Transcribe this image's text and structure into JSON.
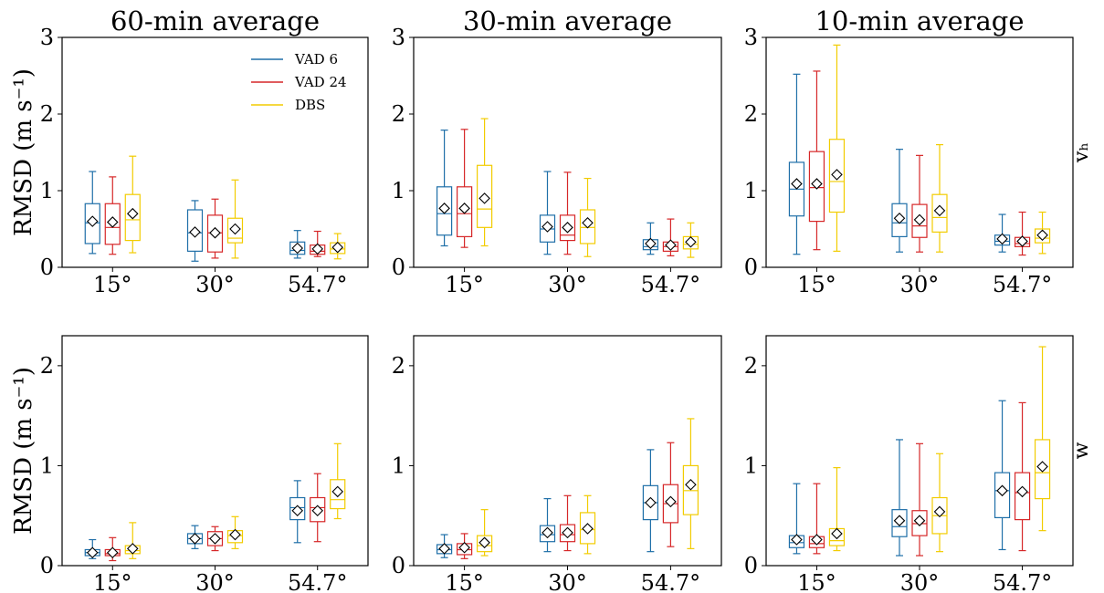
{
  "colors": {
    "VAD 6": "#1f6fa8",
    "VAD 24": "#d62728",
    "DBS": "#f2cc00"
  },
  "legend": [
    "VAD 6",
    "VAD 24",
    "DBS"
  ],
  "row_labels": [
    "vₕ",
    "w"
  ],
  "ylabel": "RMSD (m s⁻¹)",
  "chart_data": [
    {
      "type": "box",
      "title": "60-min average",
      "row": "vₕ",
      "col": "60-min average",
      "ylim": [
        0,
        3
      ],
      "yticks": [
        "0",
        "1",
        "2",
        "3"
      ],
      "categories": [
        "15°",
        "30°",
        "54.7°"
      ],
      "series": [
        {
          "name": "VAD 6",
          "boxes": [
            {
              "whislo": 0.18,
              "q1": 0.31,
              "med": 0.58,
              "q3": 0.83,
              "whishi": 1.25,
              "mean": 0.6
            },
            {
              "whislo": 0.08,
              "q1": 0.21,
              "med": 0.45,
              "q3": 0.75,
              "whishi": 0.87,
              "mean": 0.46
            },
            {
              "whislo": 0.12,
              "q1": 0.17,
              "med": 0.22,
              "q3": 0.33,
              "whishi": 0.48,
              "mean": 0.25
            }
          ]
        },
        {
          "name": "VAD 24",
          "boxes": [
            {
              "whislo": 0.17,
              "q1": 0.3,
              "med": 0.52,
              "q3": 0.83,
              "whishi": 1.18,
              "mean": 0.59
            },
            {
              "whislo": 0.12,
              "q1": 0.2,
              "med": 0.45,
              "q3": 0.68,
              "whishi": 0.89,
              "mean": 0.45
            },
            {
              "whislo": 0.14,
              "q1": 0.17,
              "med": 0.21,
              "q3": 0.29,
              "whishi": 0.47,
              "mean": 0.24
            }
          ]
        },
        {
          "name": "DBS",
          "boxes": [
            {
              "whislo": 0.19,
              "q1": 0.35,
              "med": 0.62,
              "q3": 0.95,
              "whishi": 1.45,
              "mean": 0.7
            },
            {
              "whislo": 0.12,
              "q1": 0.32,
              "med": 0.38,
              "q3": 0.64,
              "whishi": 1.14,
              "mean": 0.5
            },
            {
              "whislo": 0.11,
              "q1": 0.18,
              "med": 0.24,
              "q3": 0.32,
              "whishi": 0.44,
              "mean": 0.26
            }
          ]
        }
      ]
    },
    {
      "type": "box",
      "title": "30-min average",
      "row": "vₕ",
      "col": "30-min average",
      "ylim": [
        0,
        3
      ],
      "yticks": [
        "0",
        "1",
        "2",
        "3"
      ],
      "categories": [
        "15°",
        "30°",
        "54.7°"
      ],
      "series": [
        {
          "name": "VAD 6",
          "boxes": [
            {
              "whislo": 0.28,
              "q1": 0.42,
              "med": 0.7,
              "q3": 1.05,
              "whishi": 1.79,
              "mean": 0.77
            },
            {
              "whislo": 0.17,
              "q1": 0.33,
              "med": 0.5,
              "q3": 0.68,
              "whishi": 1.25,
              "mean": 0.53
            },
            {
              "whislo": 0.17,
              "q1": 0.23,
              "med": 0.27,
              "q3": 0.36,
              "whishi": 0.58,
              "mean": 0.31
            }
          ]
        },
        {
          "name": "VAD 24",
          "boxes": [
            {
              "whislo": 0.26,
              "q1": 0.4,
              "med": 0.7,
              "q3": 1.05,
              "whishi": 1.8,
              "mean": 0.77
            },
            {
              "whislo": 0.17,
              "q1": 0.35,
              "med": 0.42,
              "q3": 0.68,
              "whishi": 1.24,
              "mean": 0.52
            },
            {
              "whislo": 0.15,
              "q1": 0.21,
              "med": 0.27,
              "q3": 0.33,
              "whishi": 0.63,
              "mean": 0.29
            }
          ]
        },
        {
          "name": "DBS",
          "boxes": [
            {
              "whislo": 0.28,
              "q1": 0.52,
              "med": 0.76,
              "q3": 1.33,
              "whishi": 1.94,
              "mean": 0.9
            },
            {
              "whislo": 0.14,
              "q1": 0.31,
              "med": 0.52,
              "q3": 0.75,
              "whishi": 1.16,
              "mean": 0.58
            },
            {
              "whislo": 0.13,
              "q1": 0.24,
              "med": 0.3,
              "q3": 0.4,
              "whishi": 0.58,
              "mean": 0.33
            }
          ]
        }
      ]
    },
    {
      "type": "box",
      "title": "10-min average",
      "row": "vₕ",
      "col": "10-min average",
      "ylim": [
        0,
        3
      ],
      "yticks": [
        "0",
        "1",
        "2",
        "3"
      ],
      "categories": [
        "15°",
        "30°",
        "54.7°"
      ],
      "series": [
        {
          "name": "VAD 6",
          "boxes": [
            {
              "whislo": 0.17,
              "q1": 0.67,
              "med": 1.02,
              "q3": 1.37,
              "whishi": 2.52,
              "mean": 1.09
            },
            {
              "whislo": 0.2,
              "q1": 0.4,
              "med": 0.58,
              "q3": 0.83,
              "whishi": 1.54,
              "mean": 0.64
            },
            {
              "whislo": 0.2,
              "q1": 0.29,
              "med": 0.34,
              "q3": 0.42,
              "whishi": 0.69,
              "mean": 0.37
            }
          ]
        },
        {
          "name": "VAD 24",
          "boxes": [
            {
              "whislo": 0.23,
              "q1": 0.6,
              "med": 1.04,
              "q3": 1.51,
              "whishi": 2.56,
              "mean": 1.09
            },
            {
              "whislo": 0.2,
              "q1": 0.39,
              "med": 0.54,
              "q3": 0.82,
              "whishi": 1.46,
              "mean": 0.62
            },
            {
              "whislo": 0.16,
              "q1": 0.27,
              "med": 0.31,
              "q3": 0.39,
              "whishi": 0.72,
              "mean": 0.34
            }
          ]
        },
        {
          "name": "DBS",
          "boxes": [
            {
              "whislo": 0.21,
              "q1": 0.72,
              "med": 1.12,
              "q3": 1.67,
              "whishi": 2.9,
              "mean": 1.21
            },
            {
              "whislo": 0.2,
              "q1": 0.46,
              "med": 0.65,
              "q3": 0.95,
              "whishi": 1.6,
              "mean": 0.74
            },
            {
              "whislo": 0.18,
              "q1": 0.32,
              "med": 0.38,
              "q3": 0.5,
              "whishi": 0.72,
              "mean": 0.42
            }
          ]
        }
      ]
    },
    {
      "type": "box",
      "title": "",
      "row": "w",
      "col": "60-min average",
      "ylim": [
        0,
        2.3
      ],
      "yticks": [
        "0",
        "1",
        "2"
      ],
      "categories": [
        "15°",
        "30°",
        "54.7°"
      ],
      "series": [
        {
          "name": "VAD 6",
          "boxes": [
            {
              "whislo": 0.07,
              "q1": 0.1,
              "med": 0.13,
              "q3": 0.16,
              "whishi": 0.26,
              "mean": 0.13
            },
            {
              "whislo": 0.17,
              "q1": 0.22,
              "med": 0.27,
              "q3": 0.32,
              "whishi": 0.4,
              "mean": 0.27
            },
            {
              "whislo": 0.23,
              "q1": 0.46,
              "med": 0.58,
              "q3": 0.68,
              "whishi": 0.85,
              "mean": 0.55
            }
          ]
        },
        {
          "name": "VAD 24",
          "boxes": [
            {
              "whislo": 0.05,
              "q1": 0.1,
              "med": 0.12,
              "q3": 0.16,
              "whishi": 0.28,
              "mean": 0.13
            },
            {
              "whislo": 0.15,
              "q1": 0.2,
              "med": 0.27,
              "q3": 0.34,
              "whishi": 0.39,
              "mean": 0.27
            },
            {
              "whislo": 0.24,
              "q1": 0.44,
              "med": 0.58,
              "q3": 0.68,
              "whishi": 0.92,
              "mean": 0.55
            }
          ]
        },
        {
          "name": "DBS",
          "boxes": [
            {
              "whislo": 0.07,
              "q1": 0.12,
              "med": 0.15,
              "q3": 0.2,
              "whishi": 0.43,
              "mean": 0.17
            },
            {
              "whislo": 0.17,
              "q1": 0.23,
              "med": 0.3,
              "q3": 0.35,
              "whishi": 0.49,
              "mean": 0.31
            },
            {
              "whislo": 0.47,
              "q1": 0.57,
              "med": 0.66,
              "q3": 0.86,
              "whishi": 1.22,
              "mean": 0.74
            }
          ]
        }
      ]
    },
    {
      "type": "box",
      "title": "",
      "row": "w",
      "col": "30-min average",
      "ylim": [
        0,
        2.3
      ],
      "yticks": [
        "0",
        "1",
        "2"
      ],
      "categories": [
        "15°",
        "30°",
        "54.7°"
      ],
      "series": [
        {
          "name": "VAD 6",
          "boxes": [
            {
              "whislo": 0.08,
              "q1": 0.12,
              "med": 0.16,
              "q3": 0.21,
              "whishi": 0.31,
              "mean": 0.17
            },
            {
              "whislo": 0.14,
              "q1": 0.24,
              "med": 0.31,
              "q3": 0.4,
              "whishi": 0.67,
              "mean": 0.33
            },
            {
              "whislo": 0.14,
              "q1": 0.46,
              "med": 0.63,
              "q3": 0.8,
              "whishi": 1.16,
              "mean": 0.63
            }
          ]
        },
        {
          "name": "VAD 24",
          "boxes": [
            {
              "whislo": 0.07,
              "q1": 0.11,
              "med": 0.16,
              "q3": 0.22,
              "whishi": 0.32,
              "mean": 0.18
            },
            {
              "whislo": 0.15,
              "q1": 0.24,
              "med": 0.31,
              "q3": 0.41,
              "whishi": 0.7,
              "mean": 0.33
            },
            {
              "whislo": 0.19,
              "q1": 0.43,
              "med": 0.62,
              "q3": 0.81,
              "whishi": 1.23,
              "mean": 0.64
            }
          ]
        },
        {
          "name": "DBS",
          "boxes": [
            {
              "whislo": 0.1,
              "q1": 0.14,
              "med": 0.2,
              "q3": 0.3,
              "whishi": 0.56,
              "mean": 0.23
            },
            {
              "whislo": 0.12,
              "q1": 0.22,
              "med": 0.36,
              "q3": 0.53,
              "whishi": 0.7,
              "mean": 0.37
            },
            {
              "whislo": 0.17,
              "q1": 0.51,
              "med": 0.75,
              "q3": 1.0,
              "whishi": 1.47,
              "mean": 0.81
            }
          ]
        }
      ]
    },
    {
      "type": "box",
      "title": "",
      "row": "w",
      "col": "10-min average",
      "ylim": [
        0,
        2.3
      ],
      "yticks": [
        "0",
        "1",
        "2"
      ],
      "categories": [
        "15°",
        "30°",
        "54.7°"
      ],
      "series": [
        {
          "name": "VAD 6",
          "boxes": [
            {
              "whislo": 0.12,
              "q1": 0.18,
              "med": 0.23,
              "q3": 0.3,
              "whishi": 0.82,
              "mean": 0.26
            },
            {
              "whislo": 0.1,
              "q1": 0.29,
              "med": 0.39,
              "q3": 0.56,
              "whishi": 1.26,
              "mean": 0.45
            },
            {
              "whislo": 0.16,
              "q1": 0.48,
              "med": 0.75,
              "q3": 0.93,
              "whishi": 1.65,
              "mean": 0.75
            }
          ]
        },
        {
          "name": "VAD 24",
          "boxes": [
            {
              "whislo": 0.12,
              "q1": 0.18,
              "med": 0.22,
              "q3": 0.29,
              "whishi": 0.82,
              "mean": 0.26
            },
            {
              "whislo": 0.1,
              "q1": 0.3,
              "med": 0.42,
              "q3": 0.55,
              "whishi": 1.22,
              "mean": 0.45
            },
            {
              "whislo": 0.15,
              "q1": 0.46,
              "med": 0.73,
              "q3": 0.93,
              "whishi": 1.63,
              "mean": 0.74
            }
          ]
        },
        {
          "name": "DBS",
          "boxes": [
            {
              "whislo": 0.15,
              "q1": 0.2,
              "med": 0.25,
              "q3": 0.37,
              "whishi": 0.98,
              "mean": 0.32
            },
            {
              "whislo": 0.14,
              "q1": 0.32,
              "med": 0.5,
              "q3": 0.68,
              "whishi": 1.12,
              "mean": 0.54
            },
            {
              "whislo": 0.35,
              "q1": 0.67,
              "med": 0.93,
              "q3": 1.26,
              "whishi": 2.19,
              "mean": 0.99
            }
          ]
        }
      ]
    }
  ]
}
